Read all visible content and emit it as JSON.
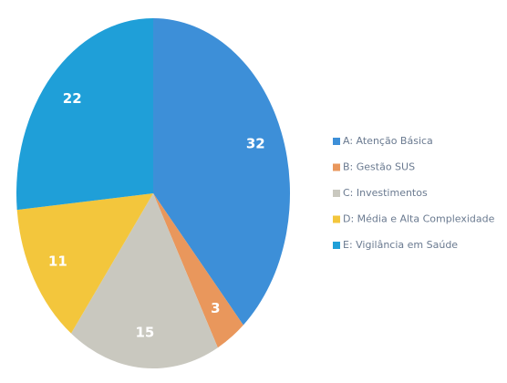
{
  "chart_data": {
    "type": "pie",
    "categories": [
      "A: Atenção Básica",
      "B: Gestão SUS",
      "C: Investimentos",
      "D: Média e Alta Complexidade",
      "E: Vigilância em Saúde"
    ],
    "values": [
      32,
      3,
      15,
      11,
      22
    ],
    "colors": [
      "#3d8fd8",
      "#e9975c",
      "#c9c8bf",
      "#f3c63c",
      "#1f9fd8"
    ]
  }
}
